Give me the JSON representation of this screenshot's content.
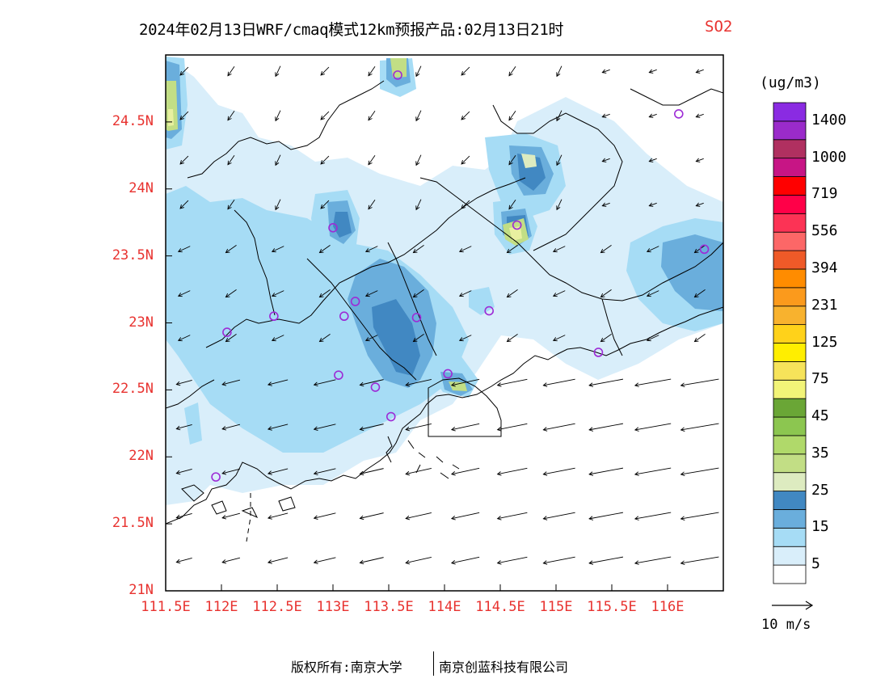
{
  "title": {
    "main": "2024年02月13日WRF/cmaq模式12km预报产品:02月13日21时",
    "species": "SO2"
  },
  "map": {
    "lat_range": [
      21,
      25
    ],
    "lon_range": [
      111.5,
      116.5
    ],
    "lat_ticks": [
      "21N",
      "21.5N",
      "22N",
      "22.5N",
      "23N",
      "23.5N",
      "24N",
      "24.5N"
    ],
    "lon_ticks": [
      "111.5E",
      "112E",
      "112.5E",
      "113E",
      "113.5E",
      "114E",
      "114.5E",
      "115E",
      "115.5E",
      "116E"
    ],
    "station_color": "#9d2bd6",
    "stations": [
      {
        "lon": 113.58,
        "lat": 24.85
      },
      {
        "lon": 116.1,
        "lat": 24.56
      },
      {
        "lon": 113.0,
        "lat": 23.71
      },
      {
        "lon": 114.65,
        "lat": 23.73
      },
      {
        "lon": 116.33,
        "lat": 23.55
      },
      {
        "lon": 113.2,
        "lat": 23.16
      },
      {
        "lon": 113.1,
        "lat": 23.05
      },
      {
        "lon": 113.75,
        "lat": 23.04
      },
      {
        "lon": 112.47,
        "lat": 23.05
      },
      {
        "lon": 114.4,
        "lat": 23.09
      },
      {
        "lon": 112.05,
        "lat": 22.93
      },
      {
        "lon": 115.38,
        "lat": 22.78
      },
      {
        "lon": 113.05,
        "lat": 22.61
      },
      {
        "lon": 113.38,
        "lat": 22.52
      },
      {
        "lon": 114.03,
        "lat": 22.62
      },
      {
        "lon": 113.52,
        "lat": 22.3
      },
      {
        "lon": 111.95,
        "lat": 21.85
      }
    ]
  },
  "legend": {
    "unit": "(ug/m3)",
    "colors": [
      "#ffffff",
      "#d9eefa",
      "#a6dcf5",
      "#6aaedc",
      "#4188c2",
      "#ddebc0",
      "#c2de85",
      "#b0d96a",
      "#8cc650",
      "#6aa636",
      "#f2f478",
      "#f6e35a",
      "#ffee00",
      "#ffd21a",
      "#f8b22e",
      "#fb9a1c",
      "#ff8c00",
      "#ef5a28",
      "#fc6767",
      "#fc3355",
      "#ff0048",
      "#ff0000",
      "#c71585",
      "#b03060",
      "#9a2bca",
      "#8a2be2"
    ],
    "labels": [
      "5",
      "15",
      "25",
      "35",
      "45",
      "75",
      "125",
      "231",
      "394",
      "556",
      "719",
      "1000",
      "1400"
    ]
  },
  "wind": {
    "reference_label": "10 m/s"
  },
  "copyright": {
    "left": "版权所有:南京大学",
    "right": "南京创蓝科技有限公司"
  }
}
